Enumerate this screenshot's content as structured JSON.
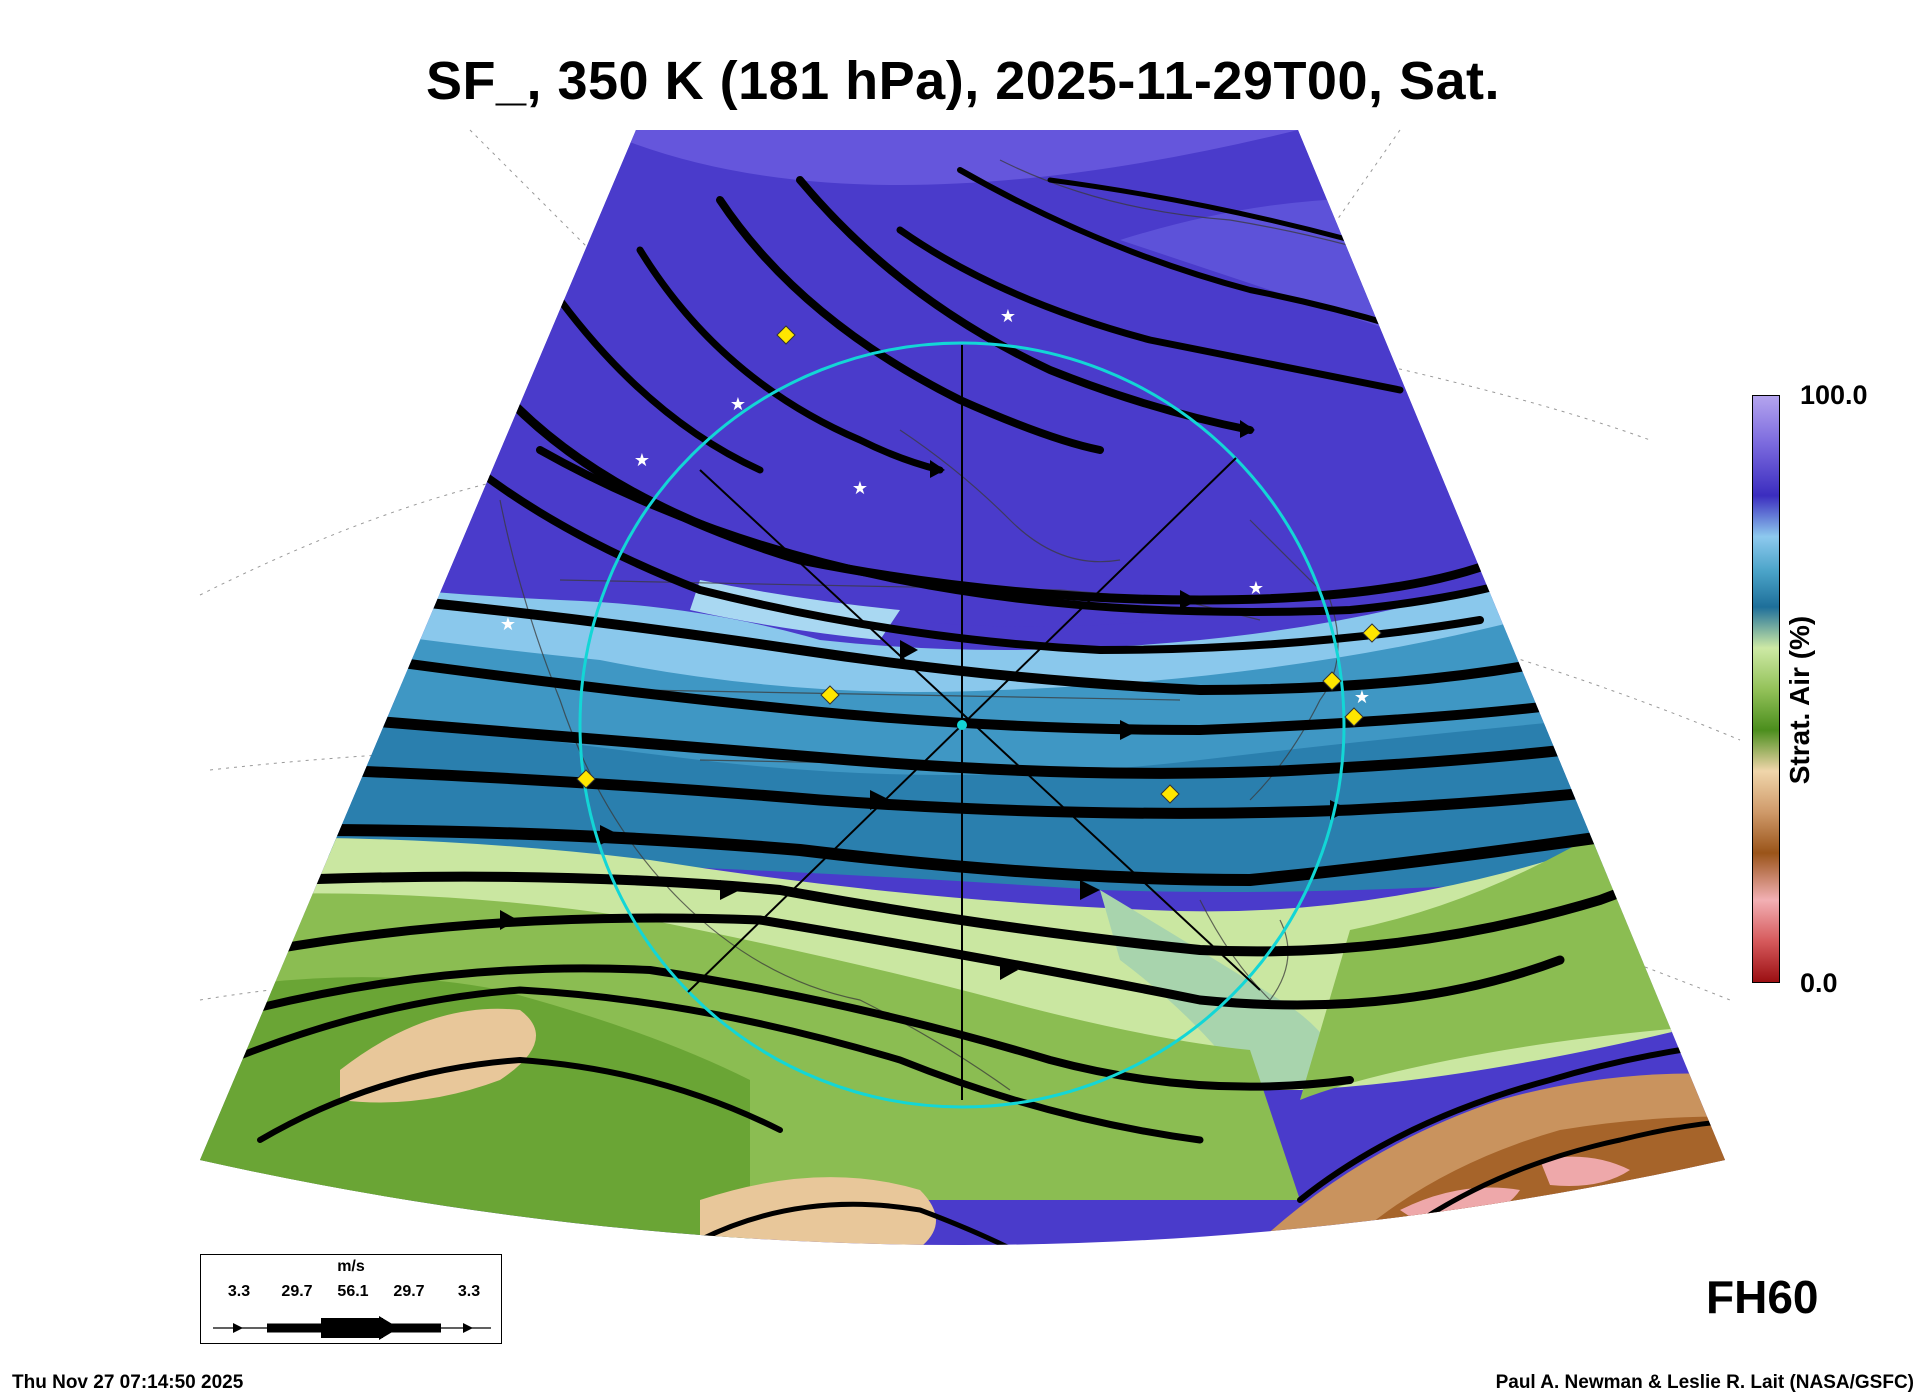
{
  "title": "SF_, 350 K (181 hPa), 2025-11-29T00, Sat.",
  "colorbar": {
    "max_label": "100.0",
    "min_label": "0.0",
    "axis_label": "Strat. Air (%)",
    "colors": [
      "#b4a4ee",
      "#7c6bde",
      "#3b2dbf",
      "#8dc9ee",
      "#4aa3c8",
      "#1e6f9a",
      "#cde9a5",
      "#94c25a",
      "#4b8e1d",
      "#f0d6ab",
      "#cf9a6a",
      "#9a5419",
      "#f2b0b4",
      "#d65a5c",
      "#9b0f12"
    ]
  },
  "forecast_hour": "FH60",
  "wind_legend": {
    "unit": "m/s",
    "values": [
      "3.3",
      "29.7",
      "56.1",
      "29.7",
      "3.3"
    ]
  },
  "footer": {
    "timestamp": "Thu Nov 27 07:14:50 2025",
    "credit": "Paul A. Newman & Leslie R. Lait (NASA/GSFC)"
  },
  "colors": {
    "circle": "#13d6d6",
    "marker_diamond": "#ffe600",
    "marker_star": "#ffffff"
  }
}
